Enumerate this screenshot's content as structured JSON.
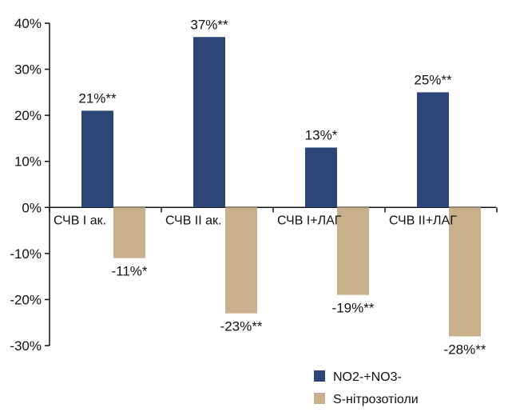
{
  "chart_data": {
    "type": "bar",
    "categories": [
      "СЧВ І ак.",
      "СЧВ ІІ ак.",
      "СЧВ І+ЛАГ",
      "СЧВ ІІ+ЛАГ"
    ],
    "series": [
      {
        "name": "NO2-+NO3-",
        "color": "#2e4577",
        "values": [
          21,
          37,
          13,
          25
        ],
        "labels": [
          "21%**",
          "37%**",
          "13%*",
          "25%**"
        ]
      },
      {
        "name": "S-нітрозотіоли",
        "color": "#c8b08d",
        "values": [
          -11,
          -23,
          -19,
          -28
        ],
        "labels": [
          "-11%*",
          "-23%**",
          "-19%**",
          "-28%**"
        ]
      }
    ],
    "ylim": [
      -30,
      40
    ],
    "yticks": [
      "40%",
      "30%",
      "20%",
      "10%",
      "0%",
      "-10%",
      "-20%",
      "-30%"
    ],
    "legend_position": "bottom-right",
    "grid": false
  }
}
